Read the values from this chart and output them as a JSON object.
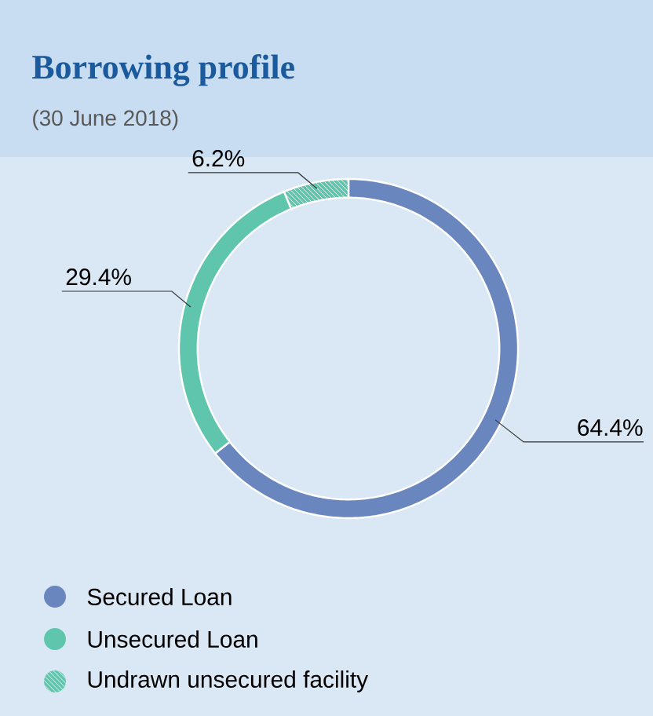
{
  "chart_data": {
    "type": "donut",
    "title": "Borrowing profile",
    "subtitle": "(30 June 2018)",
    "categories": [
      "Secured Loan",
      "Unsecured Loan",
      "Undrawn unsecured facility"
    ],
    "values": [
      64.4,
      29.4,
      6.2
    ],
    "value_labels": [
      "64.4%",
      "29.4%",
      "6.2%"
    ],
    "colors": [
      "#6a86be",
      "#5fc6ad",
      "#5fc6ad"
    ],
    "legend": "bottom"
  }
}
